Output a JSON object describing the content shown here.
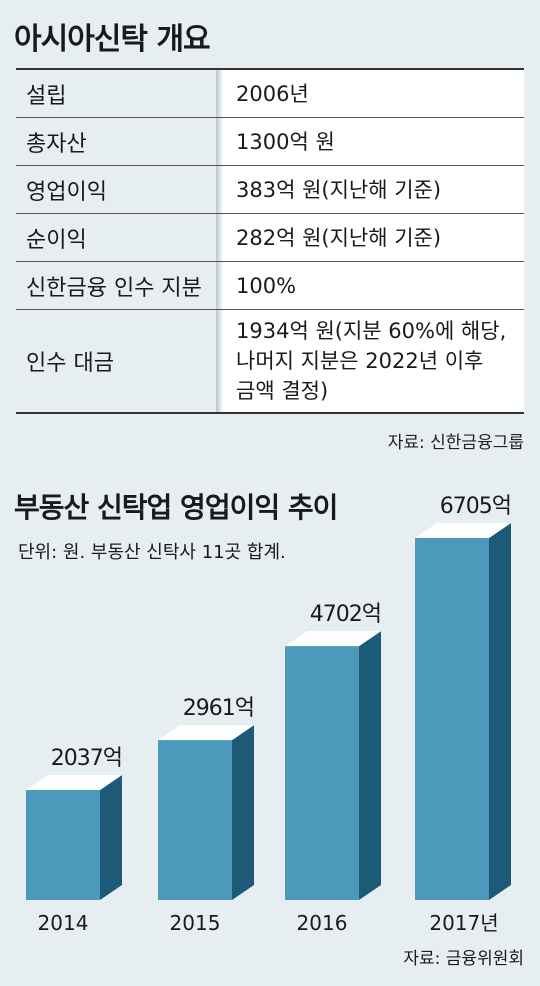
{
  "table_title": "아시아신탁 개요",
  "table_rows": [
    {
      "label": "설립",
      "value": "2006년"
    },
    {
      "label": "총자산",
      "value": "1300억 원"
    },
    {
      "label": "영업이익",
      "value": "383억 원(지난해 기준)"
    },
    {
      "label": "순이익",
      "value": "282억 원(지난해 기준)"
    },
    {
      "label": "신한금융 인수 지분",
      "value": "100%"
    },
    {
      "label": "인수 대금",
      "value": "1934억 원(지분 60%에 해당,\n나머지 지분은 2022년 이후\n금액 결정)"
    }
  ],
  "table_source": "자료: 신한금융그룹",
  "chart_data": {
    "type": "bar",
    "title": "부동산 신탁업 영업이익 추이",
    "subtitle": "단위: 원. 부동산 신탁사 11곳 합계.",
    "categories": [
      "2014",
      "2015",
      "2016",
      "2017년"
    ],
    "values": [
      2037,
      2961,
      4702,
      6705
    ],
    "value_labels": [
      "2037억",
      "2961억",
      "4702억",
      "6705억"
    ],
    "source": "자료: 금융위원회",
    "ylim": [
      0,
      6705
    ],
    "colors": {
      "front": "#4d99bb",
      "side": "#1d5a78",
      "top": "#ffffff"
    }
  }
}
